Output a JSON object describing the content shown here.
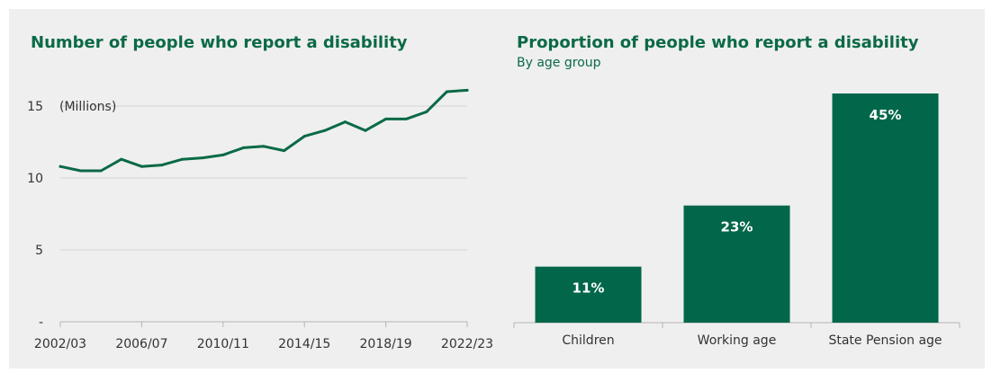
{
  "chart_data": [
    {
      "type": "line",
      "title": "Number of people who report a disability",
      "unit_label": "(Millions)",
      "ylim": [
        0,
        16.5
      ],
      "yticks": [
        {
          "value": 0,
          "label": "-"
        },
        {
          "value": 5,
          "label": "5"
        },
        {
          "value": 10,
          "label": "10"
        },
        {
          "value": 15,
          "label": "15"
        }
      ],
      "x": [
        "2002/03",
        "2003/04",
        "2004/05",
        "2005/06",
        "2006/07",
        "2007/08",
        "2008/09",
        "2009/10",
        "2010/11",
        "2011/12",
        "2012/13",
        "2013/14",
        "2014/15",
        "2015/16",
        "2016/17",
        "2017/18",
        "2018/19",
        "2019/20",
        "2020/21",
        "2021/22",
        "2022/23"
      ],
      "x_tick_labels": [
        "2002/03",
        "2006/07",
        "2010/11",
        "2014/15",
        "2018/19",
        "2022/23"
      ],
      "grid": true,
      "color": "#0b6a46",
      "series": [
        {
          "values": [
            10.8,
            10.5,
            10.5,
            11.3,
            10.8,
            10.9,
            11.3,
            11.4,
            11.6,
            12.1,
            12.2,
            11.9,
            12.9,
            13.3,
            13.9,
            13.3,
            14.1,
            14.1,
            14.6,
            16.0,
            16.1
          ]
        }
      ]
    },
    {
      "type": "bar",
      "title": "Proportion of people who report a disability",
      "subtitle": "By age group",
      "categories": [
        "Children",
        "Working age",
        "State Pension age"
      ],
      "values": [
        11,
        23,
        45
      ],
      "data_labels": [
        "11%",
        "23%",
        "45%"
      ],
      "ylim": [
        0,
        45
      ],
      "color": "#02674a"
    }
  ]
}
